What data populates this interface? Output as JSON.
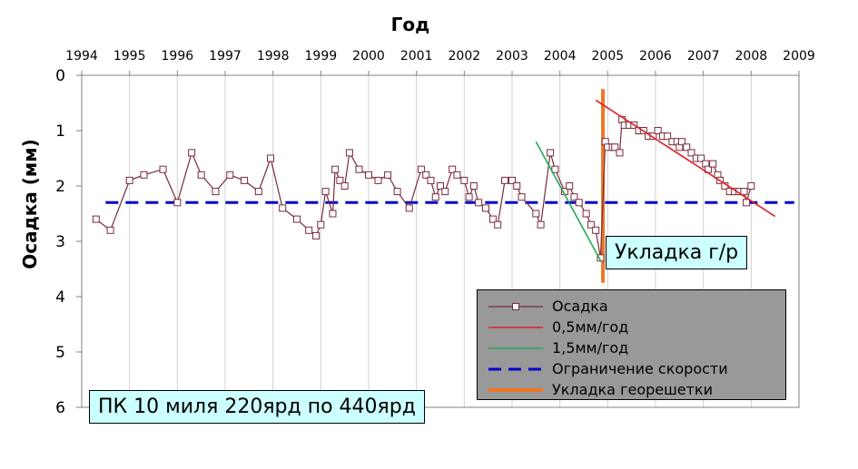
{
  "chart_data": {
    "type": "line",
    "title": "Год",
    "xlabel": "",
    "ylabel": "Осадка (мм)",
    "x_ticks": [
      1994,
      1995,
      1996,
      1997,
      1998,
      1999,
      2000,
      2001,
      2002,
      2003,
      2004,
      2005,
      2006,
      2007,
      2008,
      2009
    ],
    "y_ticks": [
      0,
      1,
      2,
      3,
      4,
      5,
      6
    ],
    "xlim": [
      1994,
      2009
    ],
    "ylim": [
      0,
      6
    ],
    "y_inverted": true,
    "grid": "vertical",
    "legend_placement": "bottom-right",
    "series": [
      {
        "name": "Осадка",
        "color": "#7a2a3c",
        "marker": "open-square",
        "x": [
          1994.3,
          1994.6,
          1995.0,
          1995.3,
          1995.7,
          1996.0,
          1996.3,
          1996.5,
          1996.8,
          1997.1,
          1997.4,
          1997.7,
          1997.95,
          1998.2,
          1998.5,
          1998.75,
          1998.9,
          1999.0,
          1999.1,
          1999.25,
          1999.3,
          1999.4,
          1999.5,
          1999.6,
          1999.8,
          2000.0,
          2000.2,
          2000.4,
          2000.6,
          2000.85,
          2001.1,
          2001.2,
          2001.3,
          2001.4,
          2001.5,
          2001.6,
          2001.75,
          2001.85,
          2002.0,
          2002.1,
          2002.2,
          2002.3,
          2002.45,
          2002.6,
          2002.7,
          2002.85,
          2003.0,
          2003.1,
          2003.2,
          2003.5,
          2003.6,
          2003.8,
          2003.9,
          2004.1,
          2004.2,
          2004.3,
          2004.4,
          2004.55,
          2004.65,
          2004.75,
          2004.85,
          2004.95,
          2005.0,
          2005.1,
          2005.15,
          2005.25,
          2005.3,
          2005.35,
          2005.45,
          2005.55,
          2005.65,
          2005.75,
          2005.85,
          2005.95,
          2006.05,
          2006.15,
          2006.25,
          2006.35,
          2006.45,
          2006.5,
          2006.55,
          2006.65,
          2006.75,
          2006.85,
          2006.95,
          2007.05,
          2007.1,
          2007.2,
          2007.3,
          2007.35,
          2007.45,
          2007.55,
          2007.65,
          2007.75,
          2007.85,
          2007.9,
          2008.0
        ],
        "y": [
          2.6,
          2.8,
          1.9,
          1.8,
          1.7,
          2.3,
          1.4,
          1.8,
          2.1,
          1.8,
          1.9,
          2.1,
          1.5,
          2.4,
          2.6,
          2.8,
          2.9,
          2.7,
          2.1,
          2.5,
          1.7,
          1.9,
          2.0,
          1.4,
          1.7,
          1.8,
          1.9,
          1.8,
          2.1,
          2.4,
          1.7,
          1.8,
          1.9,
          2.2,
          2.0,
          2.1,
          1.7,
          1.8,
          1.9,
          2.2,
          2.0,
          2.3,
          2.4,
          2.6,
          2.7,
          1.9,
          1.9,
          2.0,
          2.2,
          2.5,
          2.7,
          1.4,
          1.7,
          2.1,
          2.0,
          2.2,
          2.3,
          2.5,
          2.7,
          2.8,
          3.3,
          1.2,
          1.3,
          1.3,
          1.3,
          1.4,
          0.8,
          0.9,
          0.9,
          0.9,
          1.0,
          1.0,
          1.1,
          1.1,
          1.0,
          1.1,
          1.1,
          1.2,
          1.2,
          1.3,
          1.2,
          1.3,
          1.4,
          1.5,
          1.5,
          1.6,
          1.7,
          1.6,
          1.8,
          1.9,
          2.0,
          2.1,
          2.1,
          2.1,
          2.1,
          2.3,
          2.0
        ]
      },
      {
        "name": "0,5мм/год",
        "color": "#e02020",
        "x": [
          2004.75,
          2008.5
        ],
        "y": [
          0.45,
          2.55
        ]
      },
      {
        "name": "1,5мм/год",
        "color": "#22aa55",
        "x": [
          2003.5,
          2004.85
        ],
        "y": [
          1.2,
          3.35
        ]
      },
      {
        "name": "Ограничение скорости",
        "color": "#0000cc",
        "dashed": true,
        "x": [
          1994.5,
          2008.9
        ],
        "y": [
          2.3,
          2.3
        ]
      },
      {
        "name": "Укладка георешетки",
        "color": "#ee7722",
        "x": [
          2004.9,
          2004.9
        ],
        "y": [
          0.25,
          3.75
        ]
      }
    ],
    "annotation": "Укладка г/р",
    "caption": "ПК 10 миля 220ярд по 440ярд"
  }
}
